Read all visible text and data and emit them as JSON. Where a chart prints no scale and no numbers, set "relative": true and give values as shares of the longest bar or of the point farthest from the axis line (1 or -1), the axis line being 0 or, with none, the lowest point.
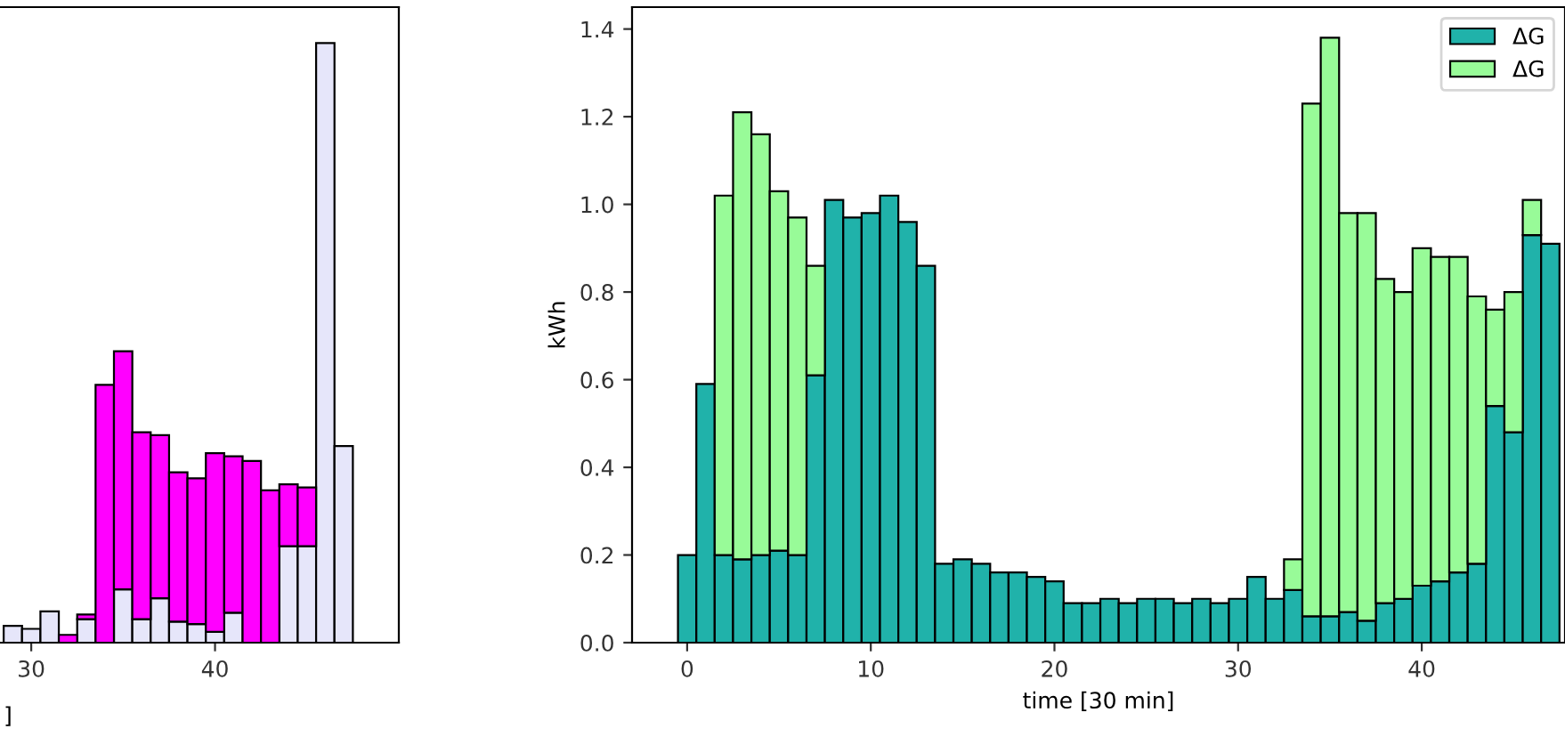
{
  "chart_data": [
    {
      "type": "bar",
      "stacked": true,
      "relative": true,
      "tick_labels": "x",
      "xlabel": "]",
      "x": [
        29,
        30,
        31,
        32,
        33,
        34,
        35,
        36,
        37,
        38,
        39,
        40,
        41,
        42,
        43,
        44,
        45,
        46,
        47
      ],
      "xlim": [
        28.3,
        50
      ],
      "xticks": [
        30,
        40
      ],
      "series": [
        {
          "color": "#e6e6fa",
          "values": [
            0.028,
            0.023,
            0.052,
            null,
            0.039,
            0,
            0.089,
            0.039,
            0.074,
            0.035,
            0.031,
            0.018,
            0.05,
            0,
            0,
            0.161,
            0.161,
            1.0,
            0.328
          ]
        },
        {
          "color": "#ff00ff",
          "values": [
            null,
            null,
            null,
            0.013,
            0.008,
            0.43,
            0.397,
            0.312,
            0.272,
            0.249,
            0.243,
            0.298,
            0.261,
            0.303,
            0.254,
            0.103,
            0.098,
            null,
            null
          ]
        }
      ]
    },
    {
      "type": "bar",
      "stacked": true,
      "xlabel": "time [30 min]",
      "ylabel": "kWh",
      "legend": "top right",
      "x": [
        0,
        1,
        2,
        3,
        4,
        5,
        6,
        7,
        8,
        9,
        10,
        11,
        12,
        13,
        14,
        15,
        16,
        17,
        18,
        19,
        20,
        21,
        22,
        23,
        24,
        25,
        26,
        27,
        28,
        29,
        30,
        31,
        32,
        33,
        34,
        35,
        36,
        37,
        38,
        39,
        40,
        41,
        42,
        43,
        44,
        45,
        46,
        47
      ],
      "xlim": [
        -3,
        47.8
      ],
      "ylim": [
        0,
        1.45
      ],
      "xticks": [
        0,
        10,
        20,
        30,
        40
      ],
      "yticks": [
        {
          "value": 0,
          "label": "0.0"
        },
        {
          "value": 0.2,
          "label": "0.2"
        },
        {
          "value": 0.4,
          "label": "0.4"
        },
        {
          "value": 0.6,
          "label": "0.6"
        },
        {
          "value": 0.8,
          "label": "0.8"
        },
        {
          "value": 1.0,
          "label": "1.0"
        },
        {
          "value": 1.2,
          "label": "1.2"
        },
        {
          "value": 1.4,
          "label": "1.4"
        }
      ],
      "series": [
        {
          "name": "ΔG",
          "color": "#20b2aa",
          "values": [
            0.2,
            0.59,
            0.2,
            0.19,
            0.2,
            0.21,
            0.2,
            0.61,
            1.01,
            0.97,
            0.98,
            1.02,
            0.96,
            0.86,
            0.18,
            0.19,
            0.18,
            0.16,
            0.16,
            0.15,
            0.14,
            0.09,
            0.09,
            0.1,
            0.09,
            0.1,
            0.1,
            0.09,
            0.1,
            0.09,
            0.1,
            0.15,
            0.1,
            0.12,
            0.06,
            0.06,
            0.07,
            0.05,
            0.09,
            0.1,
            0.13,
            0.14,
            0.16,
            0.18,
            0.54,
            0.48,
            0.93,
            0.91
          ]
        },
        {
          "name": "ΔG",
          "color": "#98fb98",
          "values": [
            null,
            null,
            0.82,
            1.02,
            0.96,
            0.82,
            0.77,
            0.25,
            null,
            null,
            null,
            null,
            null,
            null,
            null,
            null,
            null,
            null,
            null,
            null,
            null,
            null,
            null,
            null,
            null,
            null,
            null,
            null,
            null,
            null,
            null,
            null,
            null,
            0.07,
            1.17,
            1.32,
            0.91,
            0.93,
            0.74,
            0.7,
            0.77,
            0.74,
            0.72,
            0.61,
            0.22,
            0.32,
            0.08,
            null
          ]
        }
      ]
    }
  ]
}
